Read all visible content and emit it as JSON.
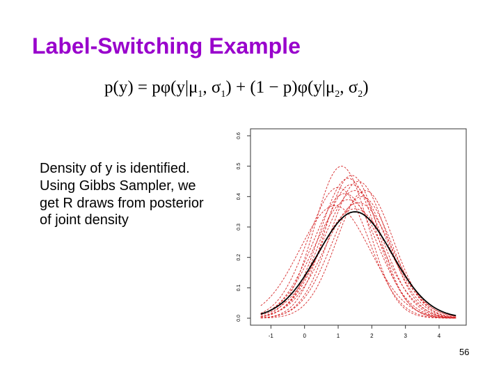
{
  "slide": {
    "title": "Label-Switching Example",
    "formula": {
      "lhs": "p(y) = ",
      "term1_prefix": "pφ(y|μ",
      "term1_sub1": "1",
      "term1_mid": ", σ",
      "term1_sub2": "1",
      "term1_suffix": ") + (1 − p)φ(y|μ",
      "term2_sub1": "2",
      "term2_mid": ", σ",
      "term2_sub2": "2",
      "term2_suffix": ")"
    },
    "description": "Density of y is identified. Using Gibbs Sampler, we get R draws from posterior of joint density",
    "page_number": "56"
  },
  "colors": {
    "title": "#9900cc",
    "draws": "#d62728",
    "mixture": "#000000"
  },
  "chart_data": {
    "type": "line",
    "title": "",
    "xlabel": "",
    "ylabel": "",
    "xlim": [
      -1.4,
      4.6
    ],
    "ylim": [
      0.0,
      0.6
    ],
    "x_ticks": [
      "-1",
      "0",
      "1",
      "2",
      "3",
      "4"
    ],
    "y_ticks": [
      "0.0",
      "0.1",
      "0.2",
      "0.3",
      "0.4",
      "0.5",
      "0.6"
    ],
    "grid": false,
    "legend": "none",
    "series_true": {
      "mean": 1.5,
      "sd": 1.1,
      "peak": 0.35
    },
    "series_draws": [
      {
        "mean": 1.1,
        "sd": 0.8,
        "peak": 0.5
      },
      {
        "mean": 1.3,
        "sd": 0.85,
        "peak": 0.46
      },
      {
        "mean": 1.4,
        "sd": 0.9,
        "peak": 0.44
      },
      {
        "mean": 1.6,
        "sd": 0.85,
        "peak": 0.45
      },
      {
        "mean": 1.0,
        "sd": 0.9,
        "peak": 0.43
      },
      {
        "mean": 1.5,
        "sd": 0.95,
        "peak": 0.42
      },
      {
        "mean": 1.7,
        "sd": 0.9,
        "peak": 0.4
      },
      {
        "mean": 1.2,
        "sd": 0.95,
        "peak": 0.41
      },
      {
        "mean": 1.3,
        "sd": 1.0,
        "peak": 0.39
      },
      {
        "mean": 1.6,
        "sd": 1.0,
        "peak": 0.38
      },
      {
        "mean": 0.9,
        "sd": 1.05,
        "peak": 0.37
      },
      {
        "mean": 1.4,
        "sd": 0.8,
        "peak": 0.47
      },
      {
        "mean": 1.5,
        "sd": 1.05,
        "peak": 0.36
      },
      {
        "mean": 1.8,
        "sd": 0.85,
        "peak": 0.42
      }
    ]
  }
}
